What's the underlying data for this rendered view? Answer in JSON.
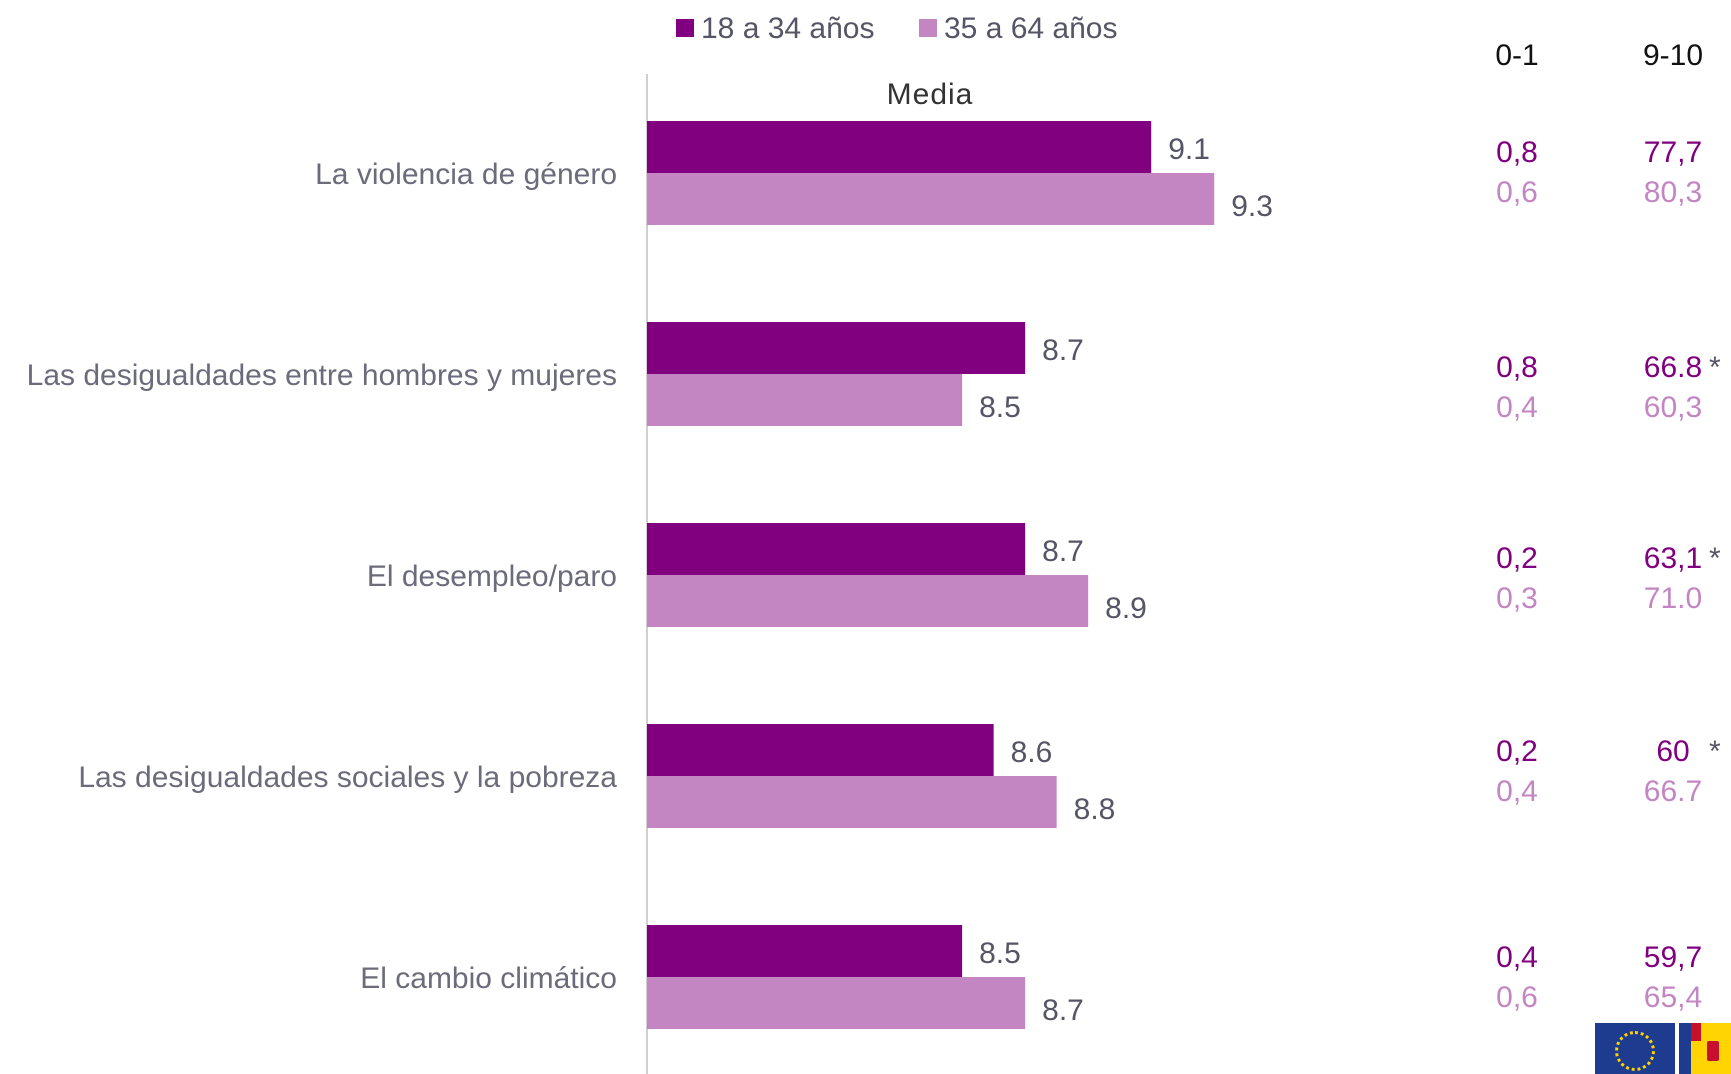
{
  "chart_data": {
    "type": "bar",
    "orientation": "horizontal",
    "axis_title": "Media",
    "categories": [
      "La violencia de género",
      "Las desigualdades entre hombres y mujeres",
      "El desempleo/paro",
      "Las desigualdades sociales y la pobreza",
      "El cambio climático"
    ],
    "series": [
      {
        "name": "18 a 34 años",
        "color": "#800080",
        "values": [
          9.1,
          8.7,
          8.7,
          8.6,
          8.5
        ],
        "labels": [
          "9.1",
          "8.7",
          "8.7",
          "8.6",
          "8.5"
        ]
      },
      {
        "name": "35 a 64 años",
        "color": "#c386c3",
        "values": [
          9.3,
          8.5,
          8.9,
          8.8,
          8.7
        ],
        "labels": [
          "9.3",
          "8.5",
          "8.9",
          "8.8",
          "8.7"
        ]
      }
    ],
    "xlim": [
      7.5,
      9.55
    ],
    "grid": false,
    "legend_position": "top",
    "table": {
      "headers": [
        "0-1",
        "9-10"
      ],
      "rows": [
        {
          "g1": [
            "0,8",
            "77,7",
            ""
          ],
          "g2": [
            "0,6",
            "80,3"
          ]
        },
        {
          "g1": [
            "0,8",
            "66.8",
            "*"
          ],
          "g2": [
            "0,4",
            "60,3"
          ]
        },
        {
          "g1": [
            "0,2",
            "63,1",
            "*"
          ],
          "g2": [
            "0,3",
            "71.0"
          ]
        },
        {
          "g1": [
            "0,2",
            "60",
            "*"
          ],
          "g2": [
            "0,4",
            "66.7"
          ]
        },
        {
          "g1": [
            "0,4",
            "59,7",
            ""
          ],
          "g2": [
            "0,6",
            "65,4"
          ]
        }
      ]
    }
  },
  "logos": {
    "eu": "eu-flag",
    "es": "spain-flag"
  }
}
